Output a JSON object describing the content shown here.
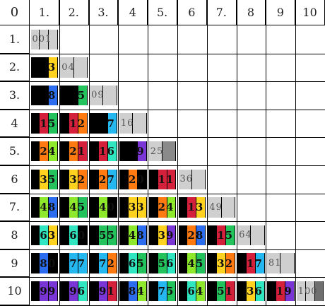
{
  "corner_label": "0",
  "column_headers": [
    "1.",
    "2.",
    "3.",
    "4",
    "5.",
    "6",
    "7.",
    "8",
    "9",
    "10"
  ],
  "row_headers": [
    "1.",
    "2.",
    "3.",
    "4",
    "5.",
    "6",
    "7.",
    "8",
    "9",
    "10"
  ],
  "colors": {
    "0": "#000000",
    "1": "#d4203a",
    "2": "#ff7a10",
    "3": "#ffd21f",
    "4": "#8ee82c",
    "5": "#23c25c",
    "6": "#2fe6c0",
    "7": "#25b8f0",
    "8": "#2c6df0",
    "9": "#7a36d4",
    "diag": "#cfcfcf"
  },
  "rows": [
    {
      "cells": [
        {
          "text": "001",
          "digits": [
            0,
            0,
            1
          ],
          "diag": true
        }
      ]
    },
    {
      "cells": [
        {
          "text": "3",
          "digits": [
            0,
            0,
            3
          ]
        },
        {
          "text": "04",
          "digits": [
            0,
            4
          ],
          "diag": true
        }
      ]
    },
    {
      "cells": [
        {
          "text": "8",
          "digits": [
            0,
            0,
            8
          ]
        },
        {
          "text": "5",
          "digits": [
            0,
            0,
            5
          ]
        },
        {
          "text": "09",
          "digits": [
            0,
            9
          ],
          "diag": true
        }
      ]
    },
    {
      "cells": [
        {
          "text": "15",
          "digits": [
            0,
            1,
            5
          ]
        },
        {
          "text": "12",
          "digits": [
            0,
            1,
            2
          ]
        },
        {
          "text": "7",
          "digits": [
            0,
            0,
            7
          ]
        },
        {
          "text": "16",
          "digits": [
            1,
            6
          ],
          "diag": true
        }
      ]
    },
    {
      "cells": [
        {
          "text": "24",
          "digits": [
            0,
            2,
            4
          ]
        },
        {
          "text": "21",
          "digits": [
            0,
            2,
            1
          ]
        },
        {
          "text": "16",
          "digits": [
            0,
            1,
            6
          ]
        },
        {
          "text": "9",
          "digits": [
            0,
            0,
            9
          ]
        },
        {
          "text": "25",
          "digits": [
            2,
            5
          ],
          "diag": true
        }
      ]
    },
    {
      "cells": [
        {
          "text": "35",
          "digits": [
            0,
            3,
            5
          ]
        },
        {
          "text": "32",
          "digits": [
            0,
            3,
            2
          ]
        },
        {
          "text": "27",
          "digits": [
            0,
            2,
            7
          ]
        },
        {
          "text": "20",
          "digits": [
            0,
            2,
            0
          ]
        },
        {
          "text": "11",
          "digits": [
            0,
            1,
            1
          ]
        },
        {
          "text": "36",
          "digits": [
            3,
            6
          ],
          "diag": true
        }
      ]
    },
    {
      "cells": [
        {
          "text": "48",
          "digits": [
            0,
            4,
            8
          ]
        },
        {
          "text": "45",
          "digits": [
            0,
            4,
            5
          ]
        },
        {
          "text": "40",
          "digits": [
            0,
            4,
            0
          ]
        },
        {
          "text": "33",
          "digits": [
            0,
            3,
            3
          ]
        },
        {
          "text": "24",
          "digits": [
            0,
            2,
            4
          ]
        },
        {
          "text": "13",
          "digits": [
            0,
            1,
            3
          ]
        },
        {
          "text": "49",
          "digits": [
            4,
            9
          ],
          "diag": true
        }
      ]
    },
    {
      "cells": [
        {
          "text": "63",
          "digits": [
            0,
            6,
            3
          ]
        },
        {
          "text": "60",
          "digits": [
            0,
            6,
            0
          ]
        },
        {
          "text": "55",
          "digits": [
            0,
            5,
            5
          ]
        },
        {
          "text": "48",
          "digits": [
            0,
            4,
            8
          ]
        },
        {
          "text": "39",
          "digits": [
            0,
            3,
            9
          ]
        },
        {
          "text": "28",
          "digits": [
            0,
            2,
            8
          ]
        },
        {
          "text": "15",
          "digits": [
            0,
            1,
            5
          ]
        },
        {
          "text": "64",
          "digits": [
            6,
            4
          ],
          "diag": true
        }
      ]
    },
    {
      "cells": [
        {
          "text": "80",
          "digits": [
            0,
            8,
            0
          ]
        },
        {
          "text": "77",
          "digits": [
            0,
            7,
            7
          ]
        },
        {
          "text": "72",
          "digits": [
            0,
            7,
            2
          ]
        },
        {
          "text": "65",
          "digits": [
            0,
            6,
            5
          ]
        },
        {
          "text": "56",
          "digits": [
            0,
            5,
            6
          ]
        },
        {
          "text": "45",
          "digits": [
            0,
            4,
            5
          ]
        },
        {
          "text": "32",
          "digits": [
            0,
            3,
            2
          ]
        },
        {
          "text": "17",
          "digits": [
            0,
            1,
            7
          ]
        },
        {
          "text": "81",
          "digits": [
            8,
            1
          ],
          "diag": true
        }
      ]
    },
    {
      "cells": [
        {
          "text": "99",
          "digits": [
            0,
            9,
            9
          ]
        },
        {
          "text": "96",
          "digits": [
            0,
            9,
            6
          ]
        },
        {
          "text": "91",
          "digits": [
            0,
            9,
            1
          ]
        },
        {
          "text": "84",
          "digits": [
            0,
            8,
            4
          ]
        },
        {
          "text": "75",
          "digits": [
            0,
            7,
            5
          ]
        },
        {
          "text": "64",
          "digits": [
            0,
            6,
            4
          ]
        },
        {
          "text": "51",
          "digits": [
            0,
            5,
            1
          ]
        },
        {
          "text": "36",
          "digits": [
            0,
            3,
            6
          ]
        },
        {
          "text": "19",
          "digits": [
            0,
            1,
            9
          ]
        },
        {
          "text": "100",
          "digits": [
            1,
            0,
            0
          ],
          "diag": true
        }
      ]
    }
  ]
}
